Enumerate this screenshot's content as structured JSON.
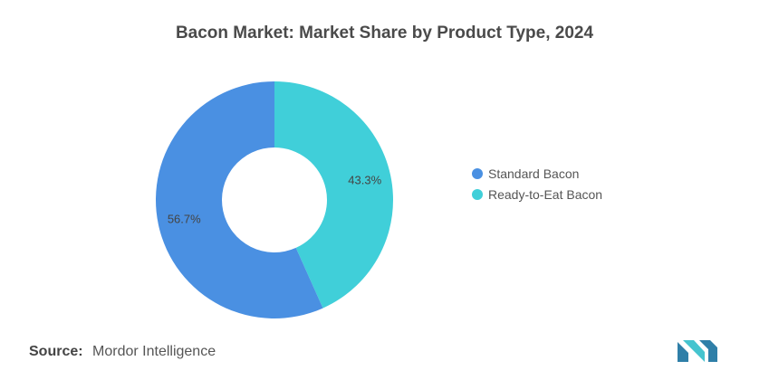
{
  "chart_data": {
    "type": "pie",
    "title": "Bacon Market: Market Share by Product Type, 2024",
    "donut": true,
    "categories": [
      "Standard Bacon",
      "Ready-to-Eat Bacon"
    ],
    "values": [
      56.7,
      43.3
    ],
    "value_labels": [
      "56.7%",
      "43.3%"
    ],
    "colors": [
      "#4a90e2",
      "#40cfd9"
    ],
    "legend_placement": "right"
  },
  "source": {
    "label": "Source:",
    "text": "Mordor Intelligence"
  },
  "logo": {
    "icon": "mordor-intelligence-logo",
    "colors": [
      "#2f7fa8",
      "#45c4cf"
    ]
  }
}
